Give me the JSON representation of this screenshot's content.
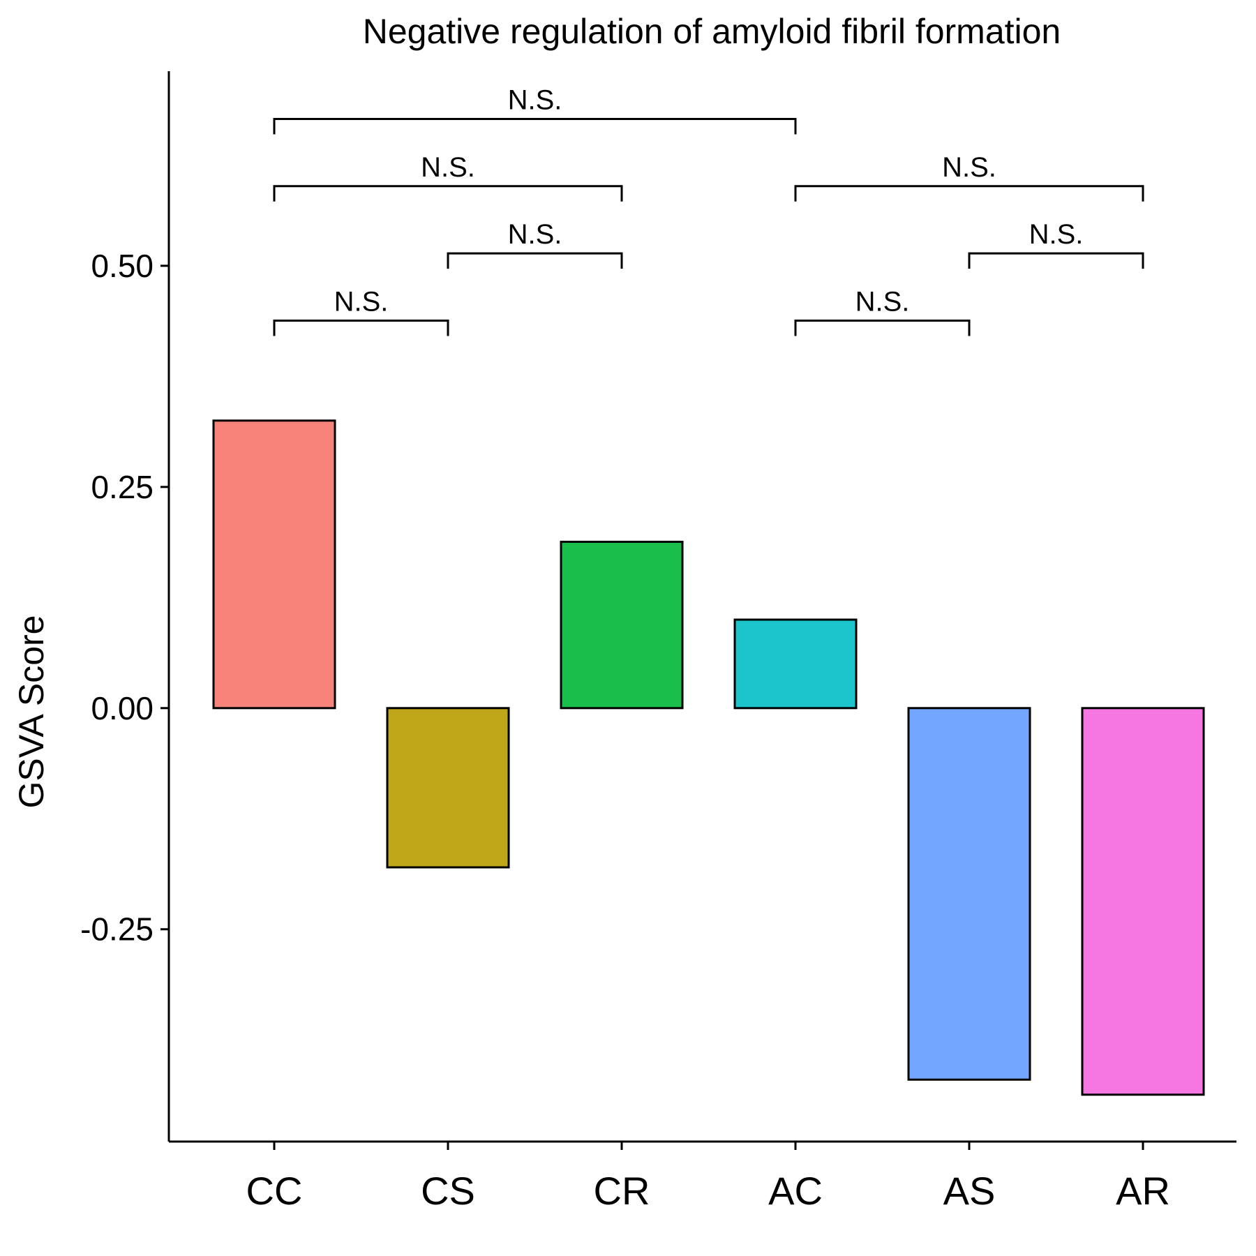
{
  "chart_data": {
    "type": "bar",
    "title": "Negative regulation of amyloid fibril formation",
    "xlabel": "",
    "ylabel": "GSVA Score",
    "categories": [
      "CC",
      "CS",
      "CR",
      "AC",
      "AS",
      "AR"
    ],
    "values": [
      0.325,
      -0.18,
      0.188,
      0.1,
      -0.42,
      -0.437
    ],
    "colors": [
      "#F8837B",
      "#BFA719",
      "#1ABF4B",
      "#1CC4CB",
      "#73A6FF",
      "#F676E2"
    ],
    "ylim": [
      -0.49,
      0.72
    ],
    "yticks": [
      {
        "value": 0.5,
        "label": "0.50"
      },
      {
        "value": 0.25,
        "label": "0.25"
      },
      {
        "value": 0.0,
        "label": "0.00"
      },
      {
        "value": -0.25,
        "label": "-0.25"
      }
    ],
    "grid": false,
    "legend": "none",
    "significance": [
      {
        "from": 0,
        "to": 1,
        "y": 0.438,
        "label": "N.S."
      },
      {
        "from": 1,
        "to": 2,
        "y": 0.514,
        "label": "N.S."
      },
      {
        "from": 0,
        "to": 2,
        "y": 0.59,
        "label": "N.S."
      },
      {
        "from": 0,
        "to": 3,
        "y": 0.666,
        "label": "N.S."
      },
      {
        "from": 3,
        "to": 4,
        "y": 0.438,
        "label": "N.S."
      },
      {
        "from": 4,
        "to": 5,
        "y": 0.514,
        "label": "N.S."
      },
      {
        "from": 3,
        "to": 5,
        "y": 0.59,
        "label": "N.S."
      }
    ]
  }
}
